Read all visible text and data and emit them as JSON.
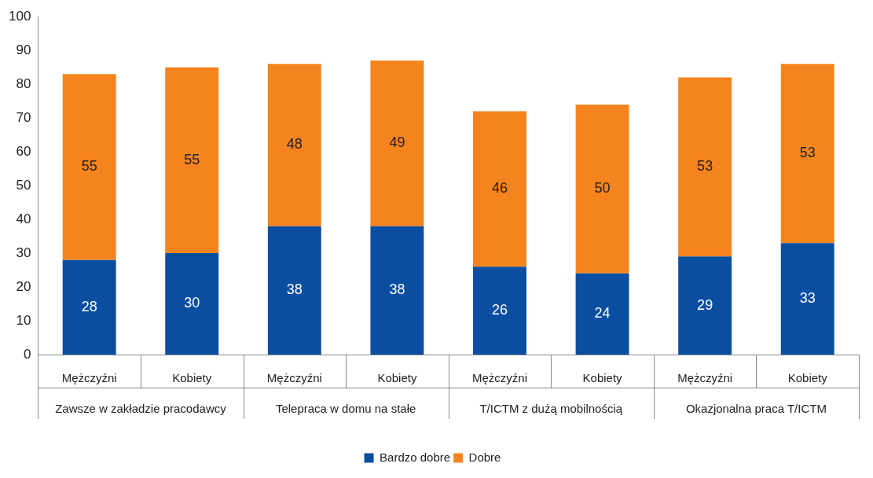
{
  "chart_data": {
    "type": "bar",
    "stacked": true,
    "categories": [
      "Mężczyźni",
      "Kobiety",
      "Mężczyźni",
      "Kobiety",
      "Mężczyźni",
      "Kobiety",
      "Mężczyźni",
      "Kobiety"
    ],
    "series": [
      {
        "name": "Bardzo dobre",
        "color": "#0a4ea2",
        "values": [
          28,
          30,
          38,
          38,
          26,
          24,
          29,
          33
        ]
      },
      {
        "name": "Dobre",
        "color": "#f5841f",
        "values": [
          55,
          55,
          48,
          49,
          46,
          50,
          53,
          53
        ]
      }
    ],
    "ylim": [
      0,
      100
    ],
    "yticks": [
      0,
      10,
      20,
      30,
      40,
      50,
      60,
      70,
      80,
      90,
      100
    ],
    "grid": false,
    "legend": "bottom",
    "data_labels": true,
    "annotations": [
      "Zawsze w zakładzie pracodawcy",
      "Telepraca w domu na stałe",
      "T/ICTM z dużą mobilnością",
      "Okazjonalna praca T/ICTM"
    ]
  }
}
